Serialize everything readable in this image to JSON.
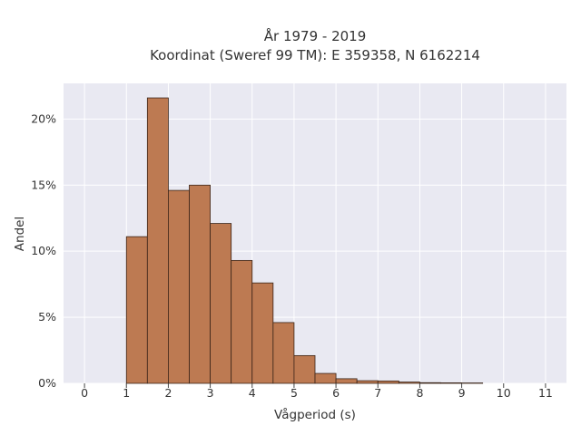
{
  "chart_data": {
    "type": "bar",
    "title": "År 1979 - 2019",
    "subtitle": "Koordinat (Sweref 99 TM): E 359358, N 6162214",
    "xlabel": "Vågperiod (s)",
    "ylabel": "Andel",
    "bin_width": 0.5,
    "bins": [
      {
        "x0": 1.0,
        "x1": 1.5,
        "value": 11.1
      },
      {
        "x0": 1.5,
        "x1": 2.0,
        "value": 21.6
      },
      {
        "x0": 2.0,
        "x1": 2.5,
        "value": 14.6
      },
      {
        "x0": 2.5,
        "x1": 3.0,
        "value": 15.0
      },
      {
        "x0": 3.0,
        "x1": 3.5,
        "value": 12.1
      },
      {
        "x0": 3.5,
        "x1": 4.0,
        "value": 9.3
      },
      {
        "x0": 4.0,
        "x1": 4.5,
        "value": 7.6
      },
      {
        "x0": 4.5,
        "x1": 5.0,
        "value": 4.6
      },
      {
        "x0": 5.0,
        "x1": 5.5,
        "value": 2.1
      },
      {
        "x0": 5.5,
        "x1": 6.0,
        "value": 0.75
      },
      {
        "x0": 6.0,
        "x1": 6.5,
        "value": 0.35
      },
      {
        "x0": 6.5,
        "x1": 7.0,
        "value": 0.2
      },
      {
        "x0": 7.0,
        "x1": 7.5,
        "value": 0.18
      },
      {
        "x0": 7.5,
        "x1": 8.0,
        "value": 0.1
      },
      {
        "x0": 8.0,
        "x1": 8.5,
        "value": 0.05
      },
      {
        "x0": 8.5,
        "x1": 9.0,
        "value": 0.04
      },
      {
        "x0": 9.0,
        "x1": 9.5,
        "value": 0.03
      }
    ],
    "x_ticks": [
      0,
      1,
      2,
      3,
      4,
      5,
      6,
      7,
      8,
      9,
      10,
      11
    ],
    "y_ticks": [
      {
        "value": 0,
        "label": "0%"
      },
      {
        "value": 5,
        "label": "5%"
      },
      {
        "value": 10,
        "label": "10%"
      },
      {
        "value": 15,
        "label": "15%"
      },
      {
        "value": 20,
        "label": "20%"
      }
    ],
    "xlim": [
      -0.5,
      11.5
    ],
    "ylim": [
      0,
      22.7
    ],
    "grid": true,
    "bar_color": "#bd7a52",
    "bar_edge_color": "#3a2418",
    "plot_background": "#e9e9f2",
    "grid_color": "#ffffff"
  }
}
